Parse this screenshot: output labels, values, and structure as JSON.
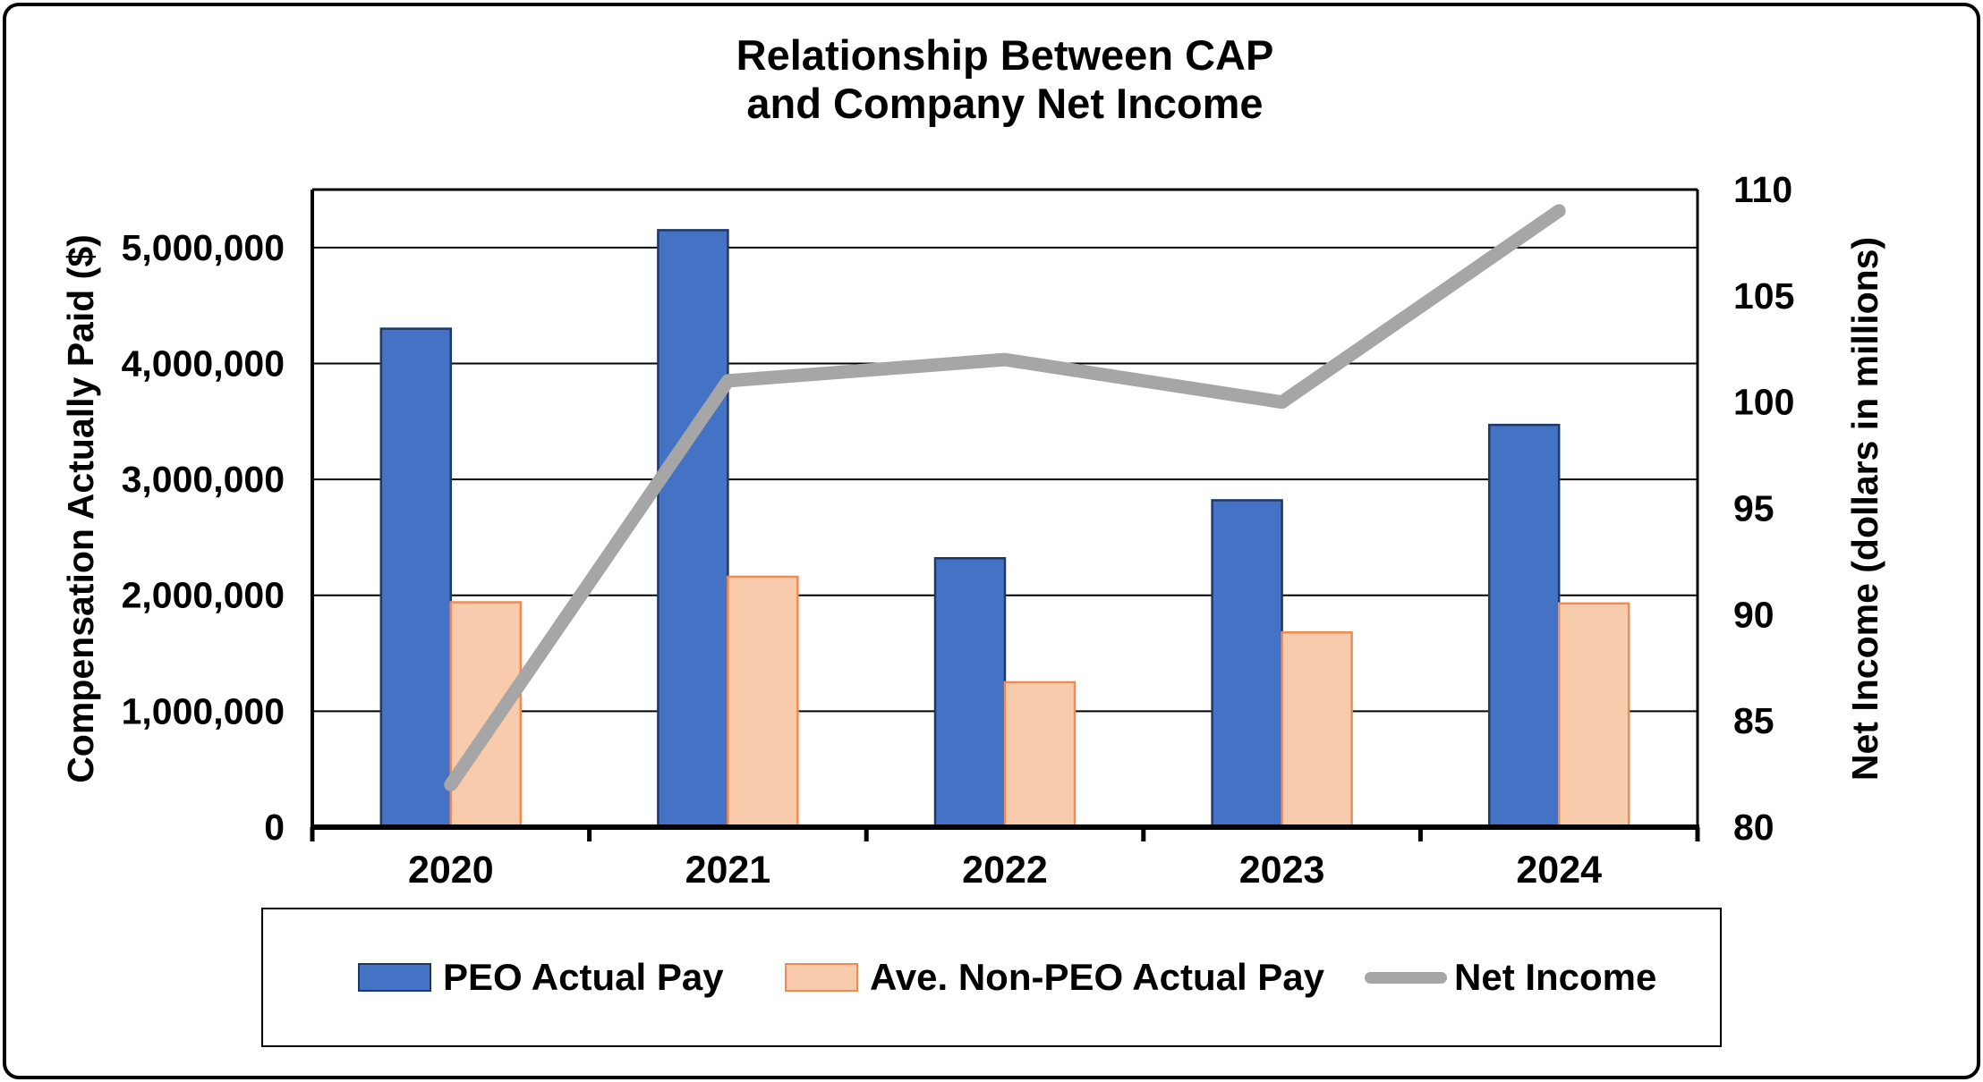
{
  "chart_data": {
    "type": "combo-bar-line",
    "title_lines": [
      "Relationship Between CAP",
      "and Company Net Income"
    ],
    "categories": [
      "2020",
      "2021",
      "2022",
      "2023",
      "2024"
    ],
    "series": [
      {
        "name": "PEO Actual Pay",
        "type": "bar",
        "axis": "left",
        "fill_color": "#4472C4",
        "border_color": "#203864",
        "values": [
          4300000,
          5150000,
          2320000,
          2820000,
          3470000
        ]
      },
      {
        "name": "Ave. Non-PEO Actual Pay",
        "type": "bar",
        "axis": "left",
        "fill_color": "#F8CBAD",
        "border_color": "#ED8C54",
        "values": [
          1940000,
          2160000,
          1250000,
          1680000,
          1930000
        ]
      },
      {
        "name": "Net Income",
        "type": "line",
        "axis": "right",
        "fill_color": "#A6A6A6",
        "border_color": "#A6A6A6",
        "values": [
          82,
          101,
          102,
          100,
          109
        ]
      }
    ],
    "left_axis": {
      "title": "Compensation Actually Paid ($)",
      "min": 0,
      "max": 5500000,
      "major_unit": 1000000,
      "tick_labels": [
        "0",
        "1,000,000",
        "2,000,000",
        "3,000,000",
        "4,000,000",
        "5,000,000"
      ]
    },
    "right_axis": {
      "title": "Net Income (dollars in millions)",
      "min": 80,
      "max": 110,
      "major_unit": 5,
      "tick_labels": [
        "80",
        "85",
        "90",
        "95",
        "100",
        "105",
        "110"
      ]
    },
    "grid": true,
    "legend_position": "bottom",
    "grid_color": "#000000",
    "axis_color": "#000000",
    "text_color": "#000000",
    "background_color": "#FFFFFF"
  }
}
